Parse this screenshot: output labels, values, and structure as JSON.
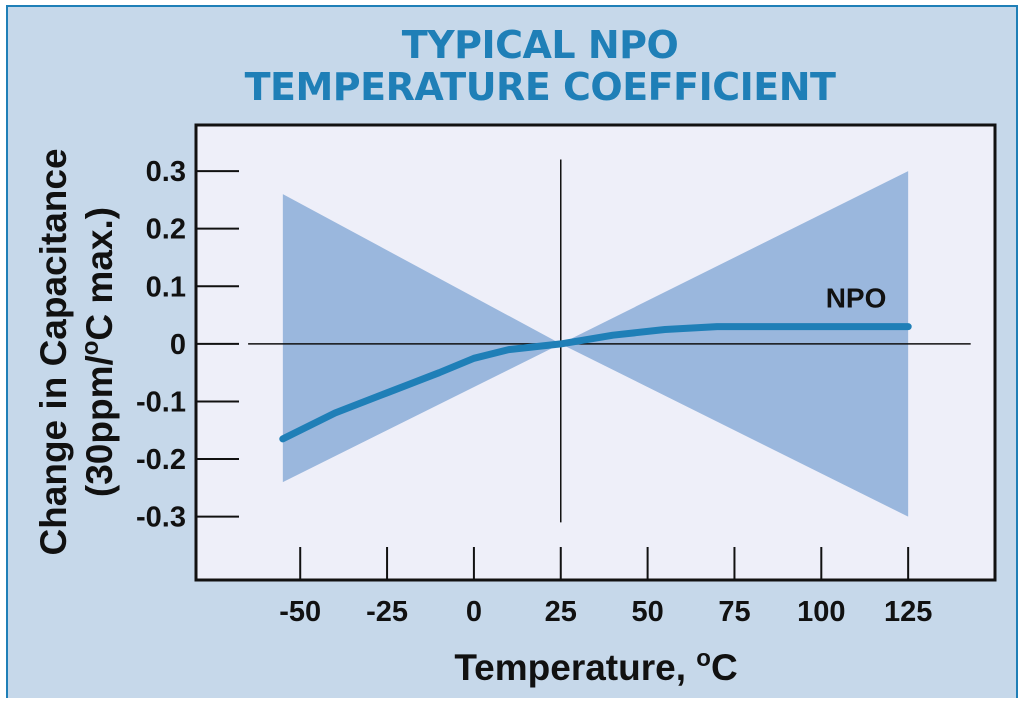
{
  "chart_data": {
    "type": "area",
    "title_lines": [
      "TYPICAL NPO",
      "TEMPERATURE COEFFICIENT"
    ],
    "xlabel": "Temperature, °C",
    "ylabel_lines": [
      "Change in Capacitance",
      "(30ppm/°C max.)"
    ],
    "xticks": [
      -50,
      -25,
      0,
      25,
      50,
      75,
      100,
      125
    ],
    "xtick_labels": [
      "-50",
      "-25",
      "0",
      "25",
      "50",
      "75",
      "100",
      "125"
    ],
    "yticks": [
      0.3,
      0.2,
      0.1,
      0,
      -0.1,
      -0.2,
      -0.3
    ],
    "ytick_labels": [
      "0.3",
      "0.2",
      "0.1",
      "0",
      "-0.1",
      "-0.2",
      "-0.3"
    ],
    "xlim": [
      -80,
      150
    ],
    "ylim": [
      -0.41,
      0.38
    ],
    "grid": false,
    "tolerance_band": {
      "x": [
        -55,
        25,
        125
      ],
      "upper": [
        0.26,
        0,
        0.3
      ],
      "lower": [
        -0.24,
        0,
        -0.3
      ]
    },
    "series": [
      {
        "name": "NPO",
        "x": [
          -55,
          -40,
          -25,
          -10,
          0,
          10,
          25,
          40,
          55,
          70,
          90,
          110,
          125
        ],
        "y": [
          -0.165,
          -0.12,
          -0.085,
          -0.05,
          -0.025,
          -0.01,
          0,
          0.015,
          0.025,
          0.03,
          0.03,
          0.03,
          0.03
        ]
      }
    ]
  },
  "colors": {
    "background": "#c6d8ea",
    "plot_area": "#eeeff9",
    "band": "#9ab7dd",
    "line": "#1f7fb7",
    "title": "#1f7fb7"
  }
}
